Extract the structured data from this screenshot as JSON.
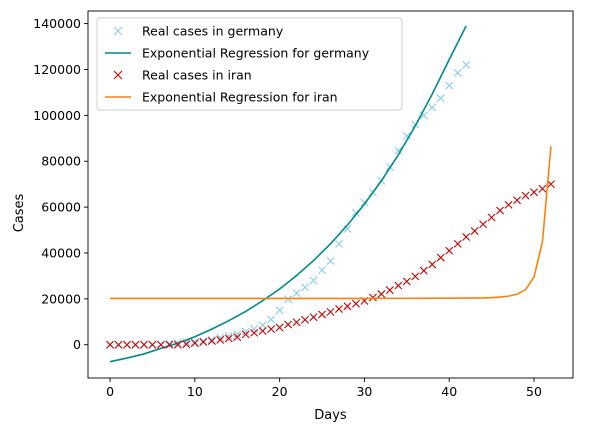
{
  "chart_data": {
    "type": "line",
    "xlabel": "Days",
    "ylabel": "Cases",
    "xlim": [
      -2.6,
      54.6
    ],
    "ylim": [
      -14500,
      145500
    ],
    "xticks": [
      0,
      10,
      20,
      30,
      40,
      50
    ],
    "yticks": [
      0,
      20000,
      40000,
      60000,
      80000,
      100000,
      120000,
      140000
    ],
    "grid": false,
    "legend_position": "top-left",
    "legend": [
      "Real cases in germany",
      "Exponential Regression for germany",
      "Real cases in iran",
      "Exponential Regression for iran"
    ],
    "series": [
      {
        "name": "Real cases in germany",
        "style": "markers-x",
        "color": "#87ceeb",
        "x": [
          0,
          1,
          2,
          3,
          4,
          5,
          6,
          7,
          8,
          9,
          10,
          11,
          12,
          13,
          14,
          15,
          16,
          17,
          18,
          19,
          20,
          21,
          22,
          23,
          24,
          25,
          26,
          27,
          28,
          29,
          30,
          31,
          32,
          33,
          34,
          35,
          36,
          37,
          38,
          39,
          40,
          41,
          42
        ],
        "y": [
          0,
          0,
          0,
          0,
          0,
          0,
          0,
          500,
          800,
          1000,
          1200,
          1600,
          2200,
          3000,
          3800,
          4500,
          5700,
          6900,
          8500,
          11000,
          15000,
          19800,
          22500,
          25000,
          28000,
          32500,
          36500,
          44000,
          50500,
          57500,
          62000,
          66500,
          71500,
          77500,
          84500,
          91000,
          96000,
          100000,
          103500,
          107500,
          113000,
          118500,
          122000
        ]
      },
      {
        "name": "Exponential Regression for germany",
        "style": "line",
        "color": "#008b8b",
        "x": [
          0,
          2,
          4,
          6,
          8,
          10,
          12,
          14,
          16,
          18,
          20,
          22,
          24,
          26,
          28,
          30,
          32,
          34,
          36,
          38,
          40,
          42
        ],
        "y": [
          -7400,
          -5800,
          -4000,
          -1600,
          700,
          3500,
          6800,
          10500,
          14500,
          19200,
          24300,
          30200,
          36700,
          44000,
          52200,
          61300,
          71500,
          82800,
          95400,
          109300,
          124300,
          139000
        ]
      },
      {
        "name": "Real cases in iran",
        "style": "markers-x",
        "color": "#cc0000",
        "x": [
          0,
          1,
          2,
          3,
          4,
          5,
          6,
          7,
          8,
          9,
          10,
          11,
          12,
          13,
          14,
          15,
          16,
          17,
          18,
          19,
          20,
          21,
          22,
          23,
          24,
          25,
          26,
          27,
          28,
          29,
          30,
          31,
          32,
          33,
          34,
          35,
          36,
          37,
          38,
          39,
          40,
          41,
          42,
          43,
          44,
          45,
          46,
          47,
          48,
          49,
          50,
          51,
          52
        ],
        "y": [
          0,
          0,
          0,
          0,
          0,
          0,
          0,
          0,
          0,
          200,
          700,
          1200,
          1600,
          2100,
          2700,
          3300,
          4500,
          5200,
          6000,
          6800,
          7500,
          8800,
          9800,
          10900,
          12000,
          13200,
          14300,
          15600,
          16800,
          17900,
          19100,
          20600,
          22100,
          23800,
          25800,
          27600,
          29800,
          32300,
          35000,
          38000,
          41000,
          44000,
          47000,
          49600,
          52500,
          55500,
          58500,
          61000,
          63000,
          65000,
          66500,
          68000,
          70000
        ]
      },
      {
        "name": "Exponential Regression for iran",
        "style": "line",
        "color": "#ff7f0e",
        "x": [
          0,
          10,
          20,
          30,
          40,
          44,
          45,
          46,
          47,
          48,
          49,
          50,
          51,
          52
        ],
        "y": [
          20200,
          20200,
          20200,
          20200,
          20300,
          20400,
          20500,
          20800,
          21200,
          22000,
          24000,
          29500,
          45000,
          86500
        ]
      }
    ]
  }
}
